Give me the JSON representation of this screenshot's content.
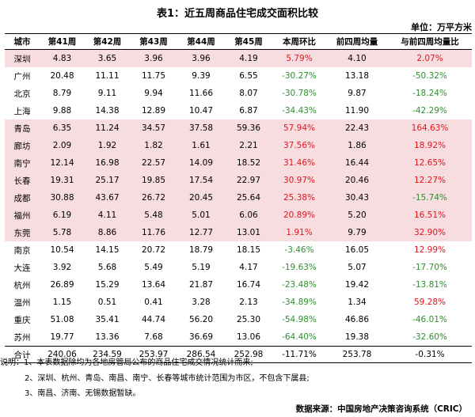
{
  "title": "表1：近五周商品住宅成交面积比较",
  "unit": "单位：万平方米",
  "headers": [
    "城市",
    "第41周",
    "第42周",
    "第43周",
    "第44周",
    "第45周",
    "本周环比",
    "前四周均量",
    "与前四周均量比"
  ],
  "rows": [
    {
      "city": "深圳",
      "w41": "4.83",
      "w42": "3.65",
      "w43": "3.96",
      "w44": "3.96",
      "w45": "4.19",
      "wow": "5.79%",
      "wow_sign": "up",
      "avg": "4.10",
      "vsavg": "2.07%",
      "vsavg_sign": "up",
      "shade": "pink"
    },
    {
      "city": "广州",
      "w41": "20.48",
      "w42": "11.11",
      "w43": "11.75",
      "w44": "9.39",
      "w45": "6.55",
      "wow": "-30.27%",
      "wow_sign": "down",
      "avg": "13.18",
      "vsavg": "-50.32%",
      "vsavg_sign": "down",
      "shade": "white"
    },
    {
      "city": "北京",
      "w41": "8.79",
      "w42": "9.11",
      "w43": "9.94",
      "w44": "11.66",
      "w45": "8.07",
      "wow": "-30.78%",
      "wow_sign": "down",
      "avg": "9.87",
      "vsavg": "-18.24%",
      "vsavg_sign": "down",
      "shade": "white"
    },
    {
      "city": "上海",
      "w41": "9.88",
      "w42": "14.38",
      "w43": "12.89",
      "w44": "10.47",
      "w45": "6.87",
      "wow": "-34.43%",
      "wow_sign": "down",
      "avg": "11.90",
      "vsavg": "-42.29%",
      "vsavg_sign": "down",
      "shade": "white"
    },
    {
      "city": "青岛",
      "w41": "6.35",
      "w42": "11.24",
      "w43": "34.57",
      "w44": "37.58",
      "w45": "59.36",
      "wow": "57.94%",
      "wow_sign": "up",
      "avg": "22.43",
      "vsavg": "164.63%",
      "vsavg_sign": "up",
      "shade": "pink"
    },
    {
      "city": "廊坊",
      "w41": "2.09",
      "w42": "1.92",
      "w43": "1.82",
      "w44": "1.61",
      "w45": "2.21",
      "wow": "37.56%",
      "wow_sign": "up",
      "avg": "1.86",
      "vsavg": "18.92%",
      "vsavg_sign": "up",
      "shade": "pink"
    },
    {
      "city": "南宁",
      "w41": "12.14",
      "w42": "16.98",
      "w43": "22.57",
      "w44": "14.09",
      "w45": "18.52",
      "wow": "31.46%",
      "wow_sign": "up",
      "avg": "16.44",
      "vsavg": "12.65%",
      "vsavg_sign": "up",
      "shade": "pink"
    },
    {
      "city": "长春",
      "w41": "19.31",
      "w42": "25.17",
      "w43": "19.85",
      "w44": "17.54",
      "w45": "22.97",
      "wow": "30.97%",
      "wow_sign": "up",
      "avg": "20.46",
      "vsavg": "12.27%",
      "vsavg_sign": "up",
      "shade": "pink"
    },
    {
      "city": "成都",
      "w41": "30.88",
      "w42": "43.67",
      "w43": "26.72",
      "w44": "20.45",
      "w45": "25.64",
      "wow": "25.38%",
      "wow_sign": "up",
      "avg": "30.43",
      "vsavg": "-15.74%",
      "vsavg_sign": "down",
      "shade": "pink"
    },
    {
      "city": "福州",
      "w41": "6.19",
      "w42": "4.11",
      "w43": "5.48",
      "w44": "5.01",
      "w45": "6.06",
      "wow": "20.89%",
      "wow_sign": "up",
      "avg": "5.20",
      "vsavg": "16.51%",
      "vsavg_sign": "up",
      "shade": "pink"
    },
    {
      "city": "东莞",
      "w41": "5.78",
      "w42": "8.86",
      "w43": "11.76",
      "w44": "12.77",
      "w45": "13.01",
      "wow": "1.91%",
      "wow_sign": "up",
      "avg": "9.79",
      "vsavg": "32.90%",
      "vsavg_sign": "up",
      "shade": "pink"
    },
    {
      "city": "南京",
      "w41": "10.54",
      "w42": "14.15",
      "w43": "20.72",
      "w44": "18.79",
      "w45": "18.15",
      "wow": "-3.46%",
      "wow_sign": "down",
      "avg": "16.05",
      "vsavg": "12.99%",
      "vsavg_sign": "up",
      "shade": "white"
    },
    {
      "city": "大连",
      "w41": "3.92",
      "w42": "5.68",
      "w43": "5.49",
      "w44": "5.19",
      "w45": "4.17",
      "wow": "-19.63%",
      "wow_sign": "down",
      "avg": "5.07",
      "vsavg": "-17.70%",
      "vsavg_sign": "down",
      "shade": "white"
    },
    {
      "city": "杭州",
      "w41": "26.89",
      "w42": "15.29",
      "w43": "13.64",
      "w44": "21.87",
      "w45": "16.74",
      "wow": "-23.48%",
      "wow_sign": "down",
      "avg": "19.42",
      "vsavg": "-13.81%",
      "vsavg_sign": "down",
      "shade": "white"
    },
    {
      "city": "温州",
      "w41": "1.15",
      "w42": "0.51",
      "w43": "0.41",
      "w44": "3.28",
      "w45": "2.13",
      "wow": "-34.89%",
      "wow_sign": "down",
      "avg": "1.34",
      "vsavg": "59.28%",
      "vsavg_sign": "up",
      "shade": "white"
    },
    {
      "city": "重庆",
      "w41": "51.08",
      "w42": "35.41",
      "w43": "44.74",
      "w44": "56.20",
      "w45": "25.30",
      "wow": "-54.98%",
      "wow_sign": "down",
      "avg": "46.86",
      "vsavg": "-46.01%",
      "vsavg_sign": "down",
      "shade": "white"
    },
    {
      "city": "苏州",
      "w41": "19.77",
      "w42": "13.36",
      "w43": "7.68",
      "w44": "36.69",
      "w45": "13.06",
      "wow": "-64.40%",
      "wow_sign": "down",
      "avg": "19.38",
      "vsavg": "-32.60%",
      "vsavg_sign": "down",
      "shade": "white"
    }
  ],
  "total": {
    "city": "合计",
    "w41": "240.06",
    "w42": "234.59",
    "w43": "253.97",
    "w44": "286.54",
    "w45": "252.98",
    "wow": "-11.71%",
    "avg": "253.78",
    "vsavg": "-0.31%"
  },
  "notes": {
    "line1": "说明：1、本表数据除均为各地房管局公布的商品住宅成交情况统计而来;",
    "line2": "2、深圳、杭州、青岛、南昌、南宁、长春等城市统计范围为市区，不包含下属县;",
    "line3": "3、南昌、济南、无锡数据暂缺。"
  },
  "source": "数据来源：中国房地产决策咨询系统（CRIC）",
  "colors": {
    "up": "#e3151b",
    "down": "#2e8f2e",
    "pink_row": "#f8dde0"
  }
}
